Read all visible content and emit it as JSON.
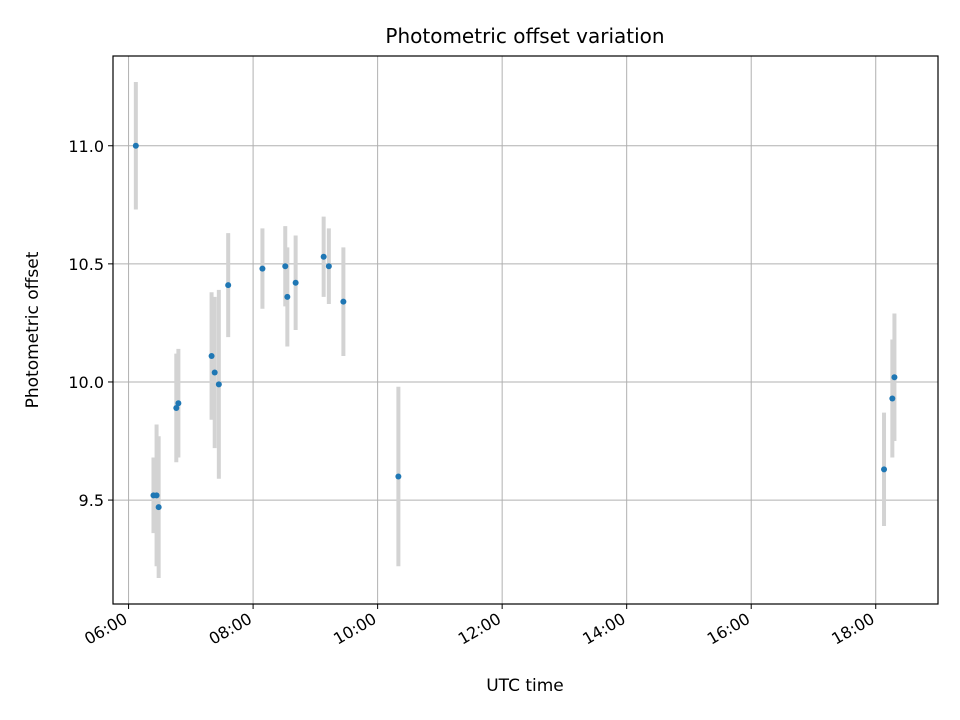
{
  "chart_data": {
    "type": "scatter",
    "title": "Photometric offset variation",
    "xlabel": "UTC time",
    "ylabel": "Photometric offset",
    "xlim": [
      "05:45",
      "19:00"
    ],
    "ylim": [
      9.06,
      11.38
    ],
    "x_ticks": [
      "06:00",
      "08:00",
      "10:00",
      "12:00",
      "14:00",
      "16:00",
      "18:00"
    ],
    "y_ticks": [
      9.5,
      10.0,
      10.5,
      11.0
    ],
    "y_tick_labels": [
      "9.5",
      "10.0",
      "10.5",
      "11.0"
    ],
    "grid": true,
    "colors": {
      "points": "#1f77b4",
      "errorbars": "#d3d3d3",
      "grid": "#b0b0b0"
    },
    "points": [
      {
        "x": "06:07",
        "y": 11.0,
        "yerr": 0.27
      },
      {
        "x": "06:24",
        "y": 9.52,
        "yerr": 0.16
      },
      {
        "x": "06:27",
        "y": 9.52,
        "yerr": 0.3
      },
      {
        "x": "06:29",
        "y": 9.47,
        "yerr": 0.3
      },
      {
        "x": "06:46",
        "y": 9.89,
        "yerr": 0.23
      },
      {
        "x": "06:48",
        "y": 9.91,
        "yerr": 0.23
      },
      {
        "x": "07:20",
        "y": 10.11,
        "yerr": 0.27
      },
      {
        "x": "07:23",
        "y": 10.04,
        "yerr": 0.32
      },
      {
        "x": "07:27",
        "y": 9.99,
        "yerr": 0.4
      },
      {
        "x": "07:36",
        "y": 10.41,
        "yerr": 0.22
      },
      {
        "x": "08:09",
        "y": 10.48,
        "yerr": 0.17
      },
      {
        "x": "08:31",
        "y": 10.49,
        "yerr": 0.17
      },
      {
        "x": "08:33",
        "y": 10.36,
        "yerr": 0.21
      },
      {
        "x": "08:41",
        "y": 10.42,
        "yerr": 0.2
      },
      {
        "x": "09:08",
        "y": 10.53,
        "yerr": 0.17
      },
      {
        "x": "09:13",
        "y": 10.49,
        "yerr": 0.16
      },
      {
        "x": "09:27",
        "y": 10.34,
        "yerr": 0.23
      },
      {
        "x": "10:20",
        "y": 9.6,
        "yerr": 0.38
      },
      {
        "x": "18:08",
        "y": 9.63,
        "yerr": 0.24
      },
      {
        "x": "18:16",
        "y": 9.93,
        "yerr": 0.25
      },
      {
        "x": "18:18",
        "y": 10.02,
        "yerr": 0.27
      }
    ]
  }
}
